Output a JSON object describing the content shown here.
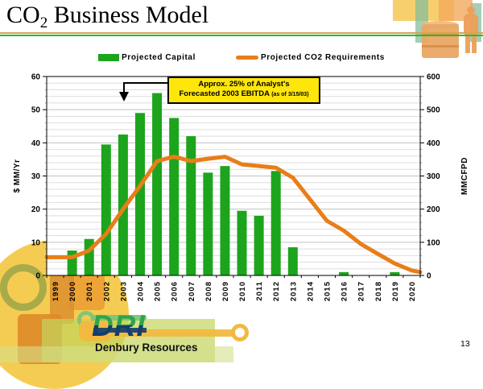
{
  "slide": {
    "title_prefix": "CO",
    "title_sub": "2",
    "title_rest": " Business Model",
    "page_number": "13"
  },
  "legend": [
    {
      "label": "Projected Capital",
      "marker": "bar-swatch"
    },
    {
      "label": "Projected CO2 Requirements",
      "marker": "line-swatch"
    }
  ],
  "annotation": {
    "line1": "Approx. 25% of Analyst's",
    "line2": "Forecasted 2003 EBITDA",
    "suffix": "(as of 3/15/03)"
  },
  "footer": {
    "logo_text": "DRI",
    "company": "Denbury Resources"
  },
  "colors": {
    "bar": "#1DA41D",
    "line": "#E87E18",
    "annotation_bg": "#FFE60A",
    "rule_orange": "#DBA34F",
    "rule_green": "#2DB82D",
    "grid_minor": "#DEDEDE",
    "grid_major": "#C2C2C2"
  },
  "decor_icons": {
    "top_right": [
      "yellow-panel",
      "teal-panel",
      "oil-barrel",
      "worker-silhouette"
    ],
    "bottom_left": [
      "yellow-circle",
      "gear",
      "flask",
      "bottle",
      "wrench",
      "industrial-blocks"
    ]
  },
  "chart_data": {
    "type": "bar",
    "subtype": "bar+line combo, dual axis",
    "categories": [
      "1999",
      "2000",
      "2001",
      "2002",
      "2003",
      "2004",
      "2005",
      "2006",
      "2007",
      "2008",
      "2009",
      "2010",
      "2011",
      "2012",
      "2013",
      "2014",
      "2015",
      "2016",
      "2017",
      "2018",
      "2019",
      "2020"
    ],
    "series": [
      {
        "name": "Projected Capital",
        "type": "bar",
        "axis": "left",
        "values": [
          0,
          7.5,
          11,
          39.5,
          42.5,
          49,
          55,
          47.5,
          42,
          31,
          33,
          19.5,
          18,
          31.5,
          8.5,
          0,
          0,
          1,
          0,
          0,
          1,
          0
        ]
      },
      {
        "name": "Projected CO2 Requirements",
        "type": "line",
        "axis": "right",
        "values": [
          55,
          55,
          75,
          125,
          200,
          270,
          345,
          358,
          345,
          352,
          358,
          335,
          330,
          325,
          295,
          230,
          165,
          135,
          95,
          65,
          36,
          15
        ]
      }
    ],
    "ylabel_left": "$ MM/Yr",
    "ylabel_right": "MMCFPD",
    "ylim_left": [
      0,
      60
    ],
    "ylim_right": [
      0,
      600
    ],
    "y_left_ticks": [
      0,
      10,
      20,
      30,
      40,
      50,
      60
    ],
    "y_right_ticks": [
      0,
      100,
      200,
      300,
      400,
      500,
      600
    ],
    "minor_grid_step_left": 2,
    "grid": true,
    "legend_position": "top",
    "line_extends_to_borders": true
  }
}
